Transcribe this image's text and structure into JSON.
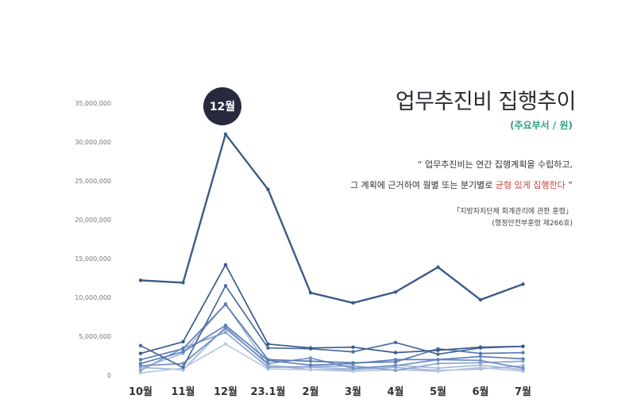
{
  "title": "업무추진비 집행추이",
  "subtitle": "(주요부서 / 원)",
  "quote": {
    "open_mark": "“",
    "line1": "업무추진비는 연간 집행계획을 수립하고,",
    "line2_pre": "그 계획에 근거하여 월별 또는 분기별로",
    "line2_highlight": "균형 있게 집행한다",
    "close_mark": "”"
  },
  "source": {
    "line1": "「지방자치단체 회계관리에 관한 훈령」",
    "line2": "(행정안전부훈령 제266호)"
  },
  "badge": "12월",
  "colors": {
    "primary_line": "#3b5a89",
    "accent_green": "#2fa088",
    "highlight_red": "#c8433d",
    "badge_bg": "#272a3d"
  },
  "chart_data": {
    "type": "line",
    "categories": [
      "10월",
      "11월",
      "12월",
      "23.1월",
      "2월",
      "3월",
      "4월",
      "5월",
      "6월",
      "7월"
    ],
    "y_ticks": [
      "0",
      "5,000,000",
      "10,000,000",
      "15,000,000",
      "20,000,000",
      "25,000,000",
      "30,000,000",
      "35,000,000"
    ],
    "ylim": [
      0,
      35000000
    ],
    "series": [
      {
        "values": [
          12200000,
          11900000,
          31000000,
          23900000,
          10600000,
          9300000,
          10700000,
          13900000,
          9700000,
          11700000
        ],
        "color": "#3b5a89"
      },
      {
        "values": [
          2800000,
          4300000,
          14200000,
          4000000,
          3500000,
          3600000,
          2900000,
          3200000,
          3600000,
          3700000
        ],
        "color": "#3b5a89"
      },
      {
        "values": [
          3800000,
          1000000,
          11500000,
          3500000,
          3400000,
          3000000,
          4200000,
          2700000,
          3500000,
          3700000
        ],
        "color": "#4a6b9c"
      },
      {
        "values": [
          2000000,
          3400000,
          9100000,
          2000000,
          1800000,
          1600000,
          1700000,
          3400000,
          2800000,
          2900000
        ],
        "color": "#5a7bb0"
      },
      {
        "values": [
          1500000,
          3000000,
          6400000,
          1900000,
          1300000,
          1500000,
          2000000,
          2000000,
          2400000,
          2100000
        ],
        "color": "#5b7fc0"
      },
      {
        "values": [
          1200000,
          1500000,
          6000000,
          1500000,
          2200000,
          900000,
          1200000,
          2000000,
          1900000,
          900000
        ],
        "color": "#6f8fc8"
      },
      {
        "values": [
          600000,
          3500000,
          5500000,
          1000000,
          1100000,
          1200000,
          600000,
          1500000,
          1600000,
          1800000
        ],
        "color": "#8aa3cc"
      },
      {
        "values": [
          900000,
          2800000,
          9200000,
          1200000,
          1000000,
          800000,
          1300000,
          900000,
          1300000,
          700000
        ],
        "color": "#a7b9d8"
      },
      {
        "values": [
          300000,
          900000,
          4000000,
          800000,
          700000,
          500000,
          700000,
          500000,
          1000000,
          500000
        ],
        "color": "#b9c7e0"
      },
      {
        "values": [
          1000000,
          700000,
          6200000,
          1300000,
          700000,
          700000,
          1000000,
          600000,
          800000,
          1200000
        ],
        "color": "#9db3d8"
      }
    ]
  }
}
